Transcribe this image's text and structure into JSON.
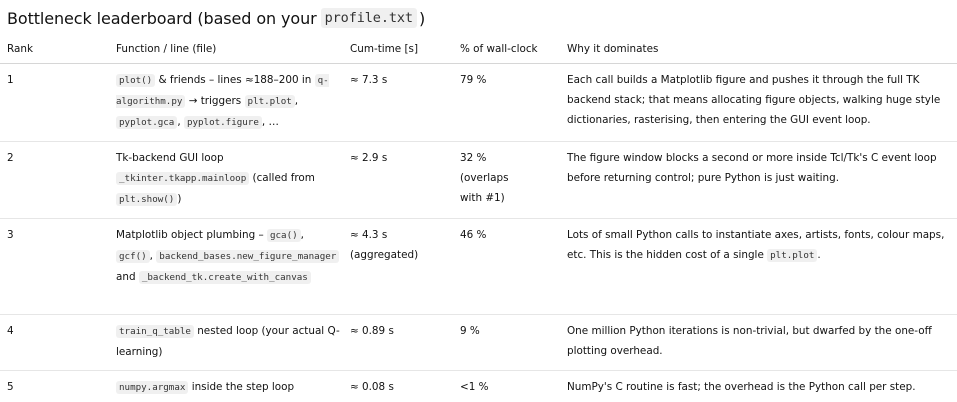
{
  "heading": {
    "prefix": "Bottleneck leaderboard (based on your",
    "file": "profile.txt",
    "suffix": ")"
  },
  "table": {
    "headers": {
      "rank": "Rank",
      "function": "Function / line (file)",
      "cum_time": "Cum-time [s]",
      "pct": "% of wall-clock",
      "why": "Why it dominates"
    },
    "rows": [
      {
        "rank": "1",
        "func": {
          "c1": "plot()",
          "t1": " & friends – lines ≈188–200 in ",
          "c2": "q-algorithm.py",
          "t2": " → triggers ",
          "c3": "plt.plot",
          "t3": ", ",
          "c4": "pyplot.gca",
          "t4": ", ",
          "c5": "pyplot.figure",
          "t5": ", …"
        },
        "cum_time": "≈ 7.3 s",
        "pct": "79 %",
        "why": "Each call builds a Matplotlib figure and pushes it through the full TK backend stack; that means allocating figure objects, walking huge style dictionaries, rasterising, then entering the GUI event loop."
      },
      {
        "rank": "2",
        "func": {
          "t0": "Tk-backend GUI loop ",
          "c1": "_tkinter.tkapp.mainloop",
          "t1": " (called from ",
          "c2": "plt.show()",
          "t2": ")"
        },
        "cum_time": "≈ 2.9 s",
        "pct": "32 % (overlaps with #1)",
        "why": "The figure window blocks a second or more inside Tcl/Tk's C event loop before returning control; pure Python is just waiting."
      },
      {
        "rank": "3",
        "func": {
          "t0": "Matplotlib object plumbing – ",
          "c1": "gca()",
          "t1": ", ",
          "c2": "gcf()",
          "t2": ", ",
          "c3": "backend_bases.new_figure_manager",
          "t3": " and ",
          "c4": "_backend_tk.create_with_canvas"
        },
        "cum_time": "≈ 4.3 s (aggregated)",
        "pct": "46 %",
        "why_pre": "Lots of small Python calls to instantiate axes, artists, fonts, colour maps, etc. This is the hidden cost of a single ",
        "why_code": "plt.plot",
        "why_post": "."
      },
      {
        "rank": "4",
        "func": {
          "c1": "train_q_table",
          "t1": " nested loop (your actual Q-learning)"
        },
        "cum_time": "≈ 0.89 s",
        "pct": "9 %",
        "why": "One million Python iterations is non-trivial, but dwarfed by the one-off plotting overhead."
      },
      {
        "rank": "5",
        "func": {
          "c1": "numpy.argmax",
          "t1": " inside the step loop"
        },
        "cum_time": "≈ 0.08 s",
        "pct": "<1 %",
        "why": "NumPy's C routine is fast; the overhead is the Python call per step."
      }
    ]
  }
}
